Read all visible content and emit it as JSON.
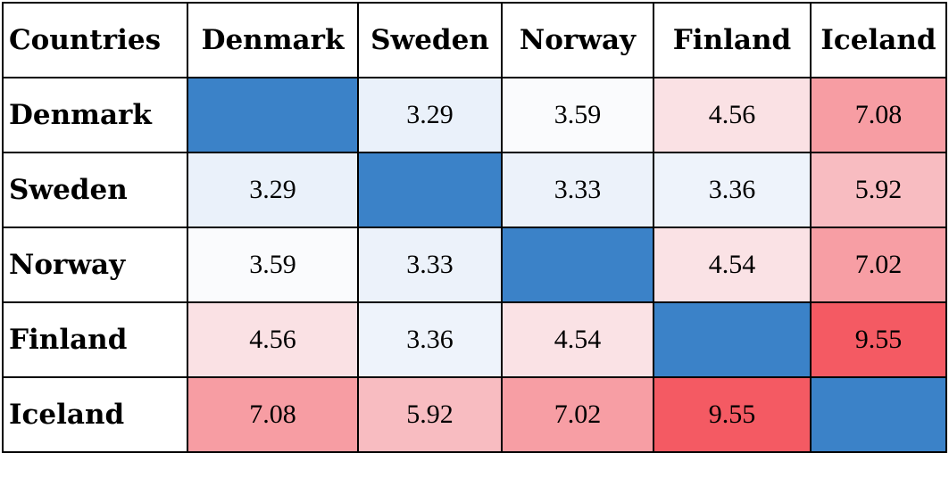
{
  "chart_data": {
    "type": "heatmap",
    "corner_label": "Countries",
    "columns": [
      "Denmark",
      "Sweden",
      "Norway",
      "Finland",
      "Iceland"
    ],
    "rows": [
      "Denmark",
      "Sweden",
      "Norway",
      "Finland",
      "Iceland"
    ],
    "values": [
      [
        null,
        3.29,
        3.59,
        4.56,
        7.08
      ],
      [
        3.29,
        null,
        3.33,
        3.36,
        5.92
      ],
      [
        3.59,
        3.33,
        null,
        4.54,
        7.02
      ],
      [
        4.56,
        3.36,
        4.54,
        null,
        9.55
      ],
      [
        7.08,
        5.92,
        7.02,
        9.55,
        null
      ]
    ],
    "diagonal_color": "#3b82c8",
    "color_scale": {
      "low_value": 3.29,
      "low_color": "#eaf1fa",
      "mid_value": 3.6,
      "mid_color": "#fbfbfd",
      "high_value": 9.55,
      "high_color": "#f45a63"
    },
    "grid": true
  }
}
